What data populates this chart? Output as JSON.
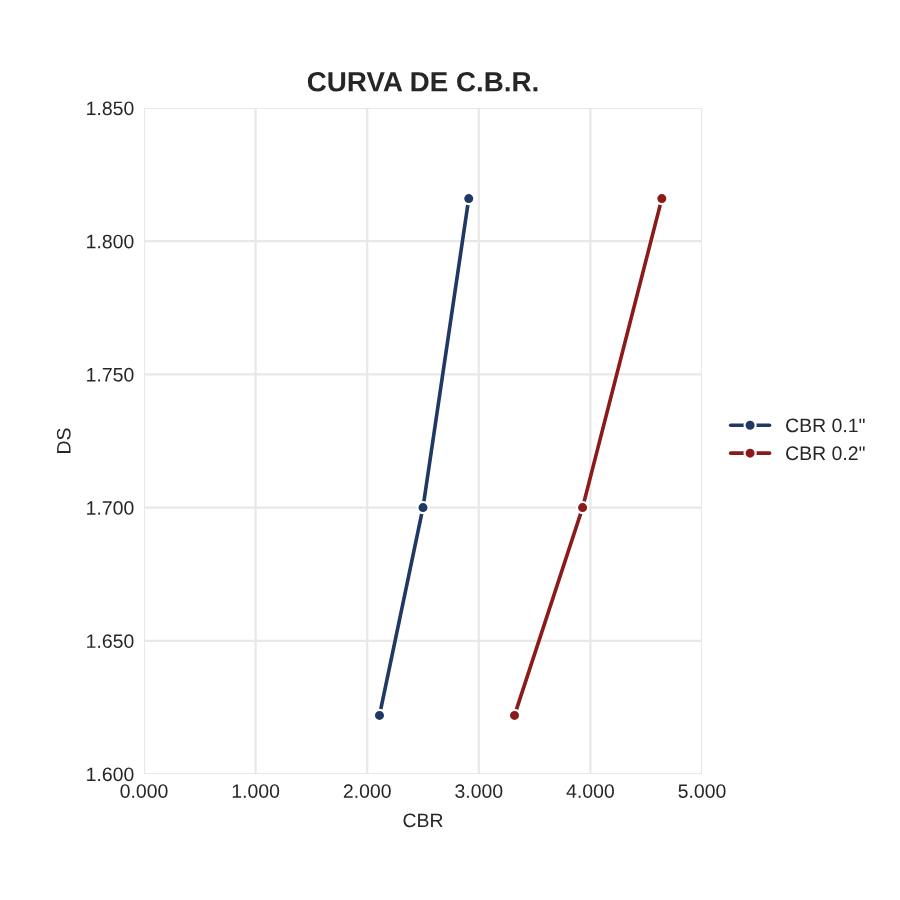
{
  "chart_data": {
    "type": "line",
    "title": "CURVA DE C.B.R.",
    "xlabel": "CBR",
    "ylabel": "DS",
    "series": [
      {
        "name": "CBR 0.1\"",
        "color": "#1f3864",
        "x": [
          2.11,
          2.5,
          2.91
        ],
        "values": [
          1.622,
          1.7,
          1.816
        ]
      },
      {
        "name": "CBR 0.2\"",
        "color": "#8b1a1a",
        "x": [
          3.32,
          3.93,
          4.64
        ],
        "values": [
          1.622,
          1.7,
          1.816
        ]
      }
    ],
    "xlim": [
      0,
      5
    ],
    "xticks": [
      {
        "value": 0,
        "label": "0.000"
      },
      {
        "value": 1,
        "label": "1.000"
      },
      {
        "value": 2,
        "label": "2.000"
      },
      {
        "value": 3,
        "label": "3.000"
      },
      {
        "value": 4,
        "label": "4.000"
      },
      {
        "value": 5,
        "label": "5.000"
      }
    ],
    "ylim": [
      1.6,
      1.85
    ],
    "yticks": [
      {
        "value": 1.6,
        "label": "1.600"
      },
      {
        "value": 1.65,
        "label": "1.650"
      },
      {
        "value": 1.7,
        "label": "1.700"
      },
      {
        "value": 1.75,
        "label": "1.750"
      },
      {
        "value": 1.8,
        "label": "1.800"
      },
      {
        "value": 1.85,
        "label": "1.850"
      }
    ],
    "grid": true,
    "legend": "right",
    "marker": "circle",
    "line_style": "solid"
  }
}
